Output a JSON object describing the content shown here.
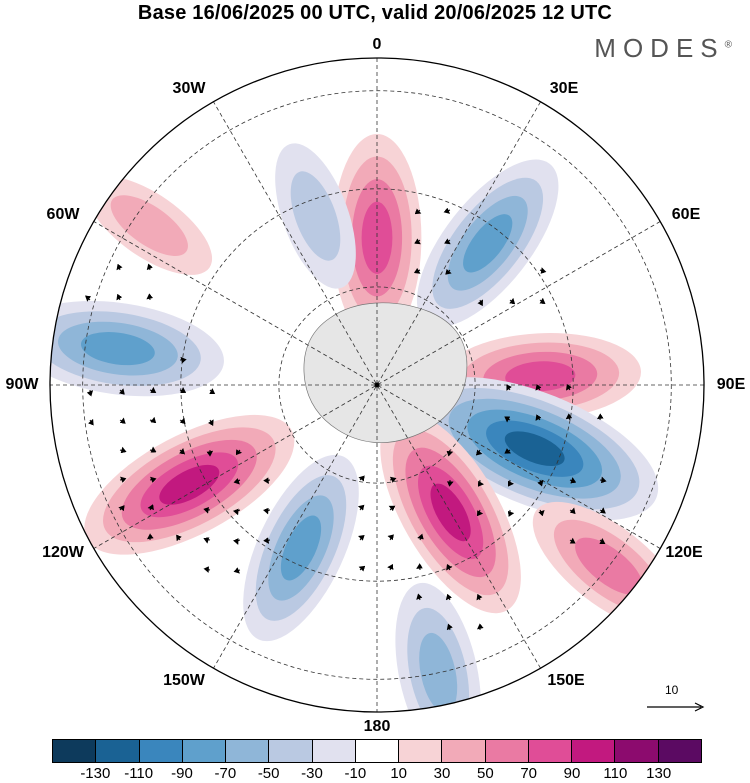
{
  "title": "Base 16/06/2025 00 UTC, valid 20/06/2025 12 UTC",
  "brand": {
    "name": "MODES",
    "mark": "®"
  },
  "longitude_labels": [
    {
      "key": "0",
      "text": "0"
    },
    {
      "key": "30E",
      "text": "30E"
    },
    {
      "key": "60E",
      "text": "60E"
    },
    {
      "key": "90E",
      "text": "90E"
    },
    {
      "key": "120E",
      "text": "120E"
    },
    {
      "key": "150E",
      "text": "150E"
    },
    {
      "key": "180",
      "text": "180"
    },
    {
      "key": "150W",
      "text": "150W"
    },
    {
      "key": "120W",
      "text": "120W"
    },
    {
      "key": "90W",
      "text": "90W"
    },
    {
      "key": "60W",
      "text": "60W"
    },
    {
      "key": "30W",
      "text": "30W"
    }
  ],
  "reference_vector": {
    "value": "10"
  },
  "colorbar": {
    "colors": [
      "#0d3a5c",
      "#1a6294",
      "#3a86bd",
      "#5fa0cc",
      "#8fb6d8",
      "#bac9e2",
      "#e1e1ef",
      "#ffffff",
      "#f7d3d6",
      "#f2aab8",
      "#ea7aa3",
      "#e04d97",
      "#c2197f",
      "#8c0b6e",
      "#5b0a62"
    ],
    "ticks": [
      "-130",
      "-110",
      "-90",
      "-70",
      "-50",
      "-30",
      "-10",
      "10",
      "30",
      "50",
      "70",
      "90",
      "110",
      "130"
    ]
  },
  "anomalies": [
    {
      "lon": 0,
      "r": 0.45,
      "value": 80
    },
    {
      "lon": 38,
      "r": 0.55,
      "value": -75
    },
    {
      "lon": 87,
      "r": 0.5,
      "value": 75
    },
    {
      "lon": 112,
      "r": 0.52,
      "value": -125
    },
    {
      "lon": 150,
      "r": 0.45,
      "value": 95
    },
    {
      "lon": 128,
      "r": 0.9,
      "value": 60
    },
    {
      "lon": 168,
      "r": 0.9,
      "value": -60
    },
    {
      "lon": -155,
      "r": 0.55,
      "value": -75
    },
    {
      "lon": -118,
      "r": 0.65,
      "value": 100
    },
    {
      "lon": -82,
      "r": 0.8,
      "value": -85
    },
    {
      "lon": -55,
      "r": 0.85,
      "value": 30
    },
    {
      "lon": -20,
      "r": 0.55,
      "value": -35
    }
  ]
}
